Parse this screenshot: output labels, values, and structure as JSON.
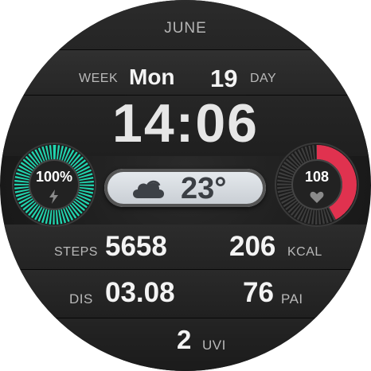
{
  "month": "JUNE",
  "date": {
    "week_label": "WEEK",
    "weekday": "Mon",
    "day": "19",
    "day_label": "DAY"
  },
  "time": "14:06",
  "battery": {
    "value": "100%",
    "level": 1.0,
    "color": "#21d6b0",
    "icon": "lightning-icon"
  },
  "weather": {
    "temperature": "23°",
    "icon": "cloud-icon"
  },
  "heart_rate": {
    "value": "108",
    "level": 0.42,
    "color": "#e0324f",
    "icon": "heart-icon"
  },
  "steps": {
    "label": "STEPS",
    "value": "5658"
  },
  "calories": {
    "value": "206",
    "label": "KCAL"
  },
  "distance": {
    "label": "DIS",
    "value": "03.08"
  },
  "pai": {
    "value": "76",
    "label": "PAI"
  },
  "uvi": {
    "value": "2",
    "label": "UVI"
  }
}
